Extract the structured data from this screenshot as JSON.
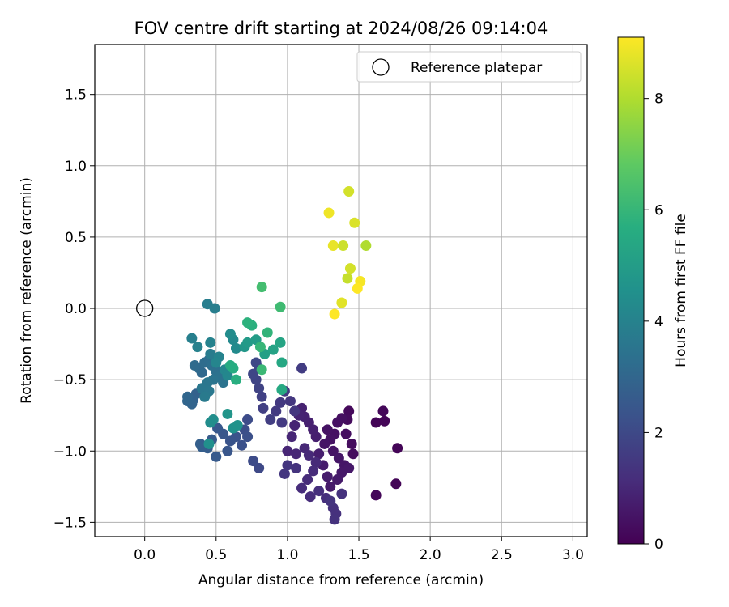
{
  "chart_data": {
    "type": "scatter",
    "title": "FOV centre drift starting at 2024/08/26 09:14:04",
    "xlabel": "Angular distance from reference (arcmin)",
    "ylabel": "Rotation from reference (arcmin)",
    "xlim": [
      -0.35,
      3.1
    ],
    "ylim": [
      -1.6,
      1.85
    ],
    "x_ticks": [
      0.0,
      0.5,
      1.0,
      1.5,
      2.0,
      2.5,
      3.0
    ],
    "x_tick_labels": [
      "0.0",
      "0.5",
      "1.0",
      "1.5",
      "2.0",
      "2.5",
      "3.0"
    ],
    "y_ticks": [
      -1.5,
      -1.0,
      -0.5,
      0.0,
      0.5,
      1.0,
      1.5
    ],
    "y_tick_labels": [
      "−1.5",
      "−1.0",
      "−0.5",
      "0.0",
      "0.5",
      "1.0",
      "1.5"
    ],
    "grid": true,
    "legend": {
      "placement": "top-right",
      "entries": [
        {
          "label": "Reference platepar",
          "marker": "open-circle"
        }
      ]
    },
    "reference_point": {
      "x": 0.0,
      "y": 0.0
    },
    "colorbar": {
      "label": "Hours from first FF file",
      "min": 0,
      "max": 9.1,
      "ticks": [
        0,
        2,
        4,
        6,
        8
      ],
      "tick_labels": [
        "0",
        "2",
        "4",
        "6",
        "8"
      ],
      "colormap": "viridis"
    },
    "points": [
      {
        "x": 1.62,
        "y": -0.8,
        "h": 0.1
      },
      {
        "x": 1.68,
        "y": -0.79,
        "h": 0.1
      },
      {
        "x": 1.67,
        "y": -0.72,
        "h": 0.15
      },
      {
        "x": 1.77,
        "y": -0.98,
        "h": 0.1
      },
      {
        "x": 1.76,
        "y": -1.23,
        "h": 0.1
      },
      {
        "x": 1.62,
        "y": -1.31,
        "h": 0.15
      },
      {
        "x": 1.43,
        "y": -0.72,
        "h": 0.2
      },
      {
        "x": 1.42,
        "y": -0.78,
        "h": 0.25
      },
      {
        "x": 1.46,
        "y": -1.02,
        "h": 0.3
      },
      {
        "x": 1.45,
        "y": -0.95,
        "h": 0.3
      },
      {
        "x": 1.41,
        "y": -0.88,
        "h": 0.35
      },
      {
        "x": 1.38,
        "y": -0.77,
        "h": 0.35
      },
      {
        "x": 1.35,
        "y": -0.8,
        "h": 0.4
      },
      {
        "x": 1.33,
        "y": -0.88,
        "h": 0.4
      },
      {
        "x": 1.3,
        "y": -0.92,
        "h": 0.45
      },
      {
        "x": 1.28,
        "y": -0.85,
        "h": 0.45
      },
      {
        "x": 1.26,
        "y": -0.95,
        "h": 0.5
      },
      {
        "x": 1.32,
        "y": -1.0,
        "h": 0.5
      },
      {
        "x": 1.36,
        "y": -1.05,
        "h": 0.55
      },
      {
        "x": 1.4,
        "y": -1.1,
        "h": 0.55
      },
      {
        "x": 1.43,
        "y": -1.12,
        "h": 0.6
      },
      {
        "x": 1.38,
        "y": -1.15,
        "h": 0.6
      },
      {
        "x": 1.35,
        "y": -1.2,
        "h": 0.65
      },
      {
        "x": 1.3,
        "y": -1.25,
        "h": 0.65
      },
      {
        "x": 1.28,
        "y": -1.18,
        "h": 0.7
      },
      {
        "x": 1.25,
        "y": -1.1,
        "h": 0.7
      },
      {
        "x": 1.22,
        "y": -1.02,
        "h": 0.75
      },
      {
        "x": 1.2,
        "y": -0.9,
        "h": 0.75
      },
      {
        "x": 1.18,
        "y": -0.85,
        "h": 0.8
      },
      {
        "x": 1.15,
        "y": -0.8,
        "h": 0.8
      },
      {
        "x": 1.12,
        "y": -0.76,
        "h": 0.85
      },
      {
        "x": 1.1,
        "y": -0.7,
        "h": 0.85
      },
      {
        "x": 1.08,
        "y": -0.75,
        "h": 0.9
      },
      {
        "x": 1.05,
        "y": -0.82,
        "h": 0.9
      },
      {
        "x": 1.03,
        "y": -0.9,
        "h": 0.95
      },
      {
        "x": 1.0,
        "y": -1.0,
        "h": 0.95
      },
      {
        "x": 1.06,
        "y": -1.02,
        "h": 1.0
      },
      {
        "x": 1.12,
        "y": -0.98,
        "h": 1.0
      },
      {
        "x": 1.15,
        "y": -1.03,
        "h": 1.05
      },
      {
        "x": 1.2,
        "y": -1.08,
        "h": 1.05
      },
      {
        "x": 1.18,
        "y": -1.14,
        "h": 1.1
      },
      {
        "x": 1.14,
        "y": -1.2,
        "h": 1.1
      },
      {
        "x": 1.1,
        "y": -1.26,
        "h": 1.15
      },
      {
        "x": 1.16,
        "y": -1.32,
        "h": 1.15
      },
      {
        "x": 1.22,
        "y": -1.28,
        "h": 1.2
      },
      {
        "x": 1.27,
        "y": -1.33,
        "h": 1.2
      },
      {
        "x": 1.32,
        "y": -1.4,
        "h": 1.25
      },
      {
        "x": 1.34,
        "y": -1.44,
        "h": 1.25
      },
      {
        "x": 1.33,
        "y": -1.48,
        "h": 1.3
      },
      {
        "x": 1.38,
        "y": -1.3,
        "h": 1.3
      },
      {
        "x": 1.3,
        "y": -1.35,
        "h": 1.35
      },
      {
        "x": 1.06,
        "y": -1.12,
        "h": 1.35
      },
      {
        "x": 1.0,
        "y": -1.1,
        "h": 1.4
      },
      {
        "x": 0.98,
        "y": -1.16,
        "h": 1.4
      },
      {
        "x": 1.05,
        "y": -0.72,
        "h": 1.45
      },
      {
        "x": 1.02,
        "y": -0.65,
        "h": 1.45
      },
      {
        "x": 0.98,
        "y": -0.58,
        "h": 1.5
      },
      {
        "x": 0.95,
        "y": -0.66,
        "h": 1.5
      },
      {
        "x": 0.92,
        "y": -0.72,
        "h": 1.55
      },
      {
        "x": 0.96,
        "y": -0.8,
        "h": 1.55
      },
      {
        "x": 1.1,
        "y": -0.42,
        "h": 1.6
      },
      {
        "x": 0.88,
        "y": -0.78,
        "h": 1.65
      },
      {
        "x": 0.83,
        "y": -0.7,
        "h": 1.7
      },
      {
        "x": 0.82,
        "y": -0.62,
        "h": 1.75
      },
      {
        "x": 0.8,
        "y": -0.56,
        "h": 1.8
      },
      {
        "x": 0.78,
        "y": -0.5,
        "h": 1.85
      },
      {
        "x": 0.76,
        "y": -0.46,
        "h": 1.9
      },
      {
        "x": 0.8,
        "y": -0.42,
        "h": 1.95
      },
      {
        "x": 0.78,
        "y": -0.38,
        "h": 2.0
      },
      {
        "x": 0.8,
        "y": -1.12,
        "h": 2.0
      },
      {
        "x": 0.76,
        "y": -1.07,
        "h": 2.05
      },
      {
        "x": 0.72,
        "y": -0.78,
        "h": 2.1
      },
      {
        "x": 0.7,
        "y": -0.85,
        "h": 2.15
      },
      {
        "x": 0.72,
        "y": -0.9,
        "h": 2.2
      },
      {
        "x": 0.68,
        "y": -0.96,
        "h": 2.25
      },
      {
        "x": 0.64,
        "y": -0.9,
        "h": 2.3
      },
      {
        "x": 0.6,
        "y": -0.93,
        "h": 2.35
      },
      {
        "x": 0.58,
        "y": -1.0,
        "h": 2.4
      },
      {
        "x": 0.55,
        "y": -0.88,
        "h": 2.45
      },
      {
        "x": 0.51,
        "y": -0.84,
        "h": 2.5
      },
      {
        "x": 0.5,
        "y": -1.04,
        "h": 2.55
      },
      {
        "x": 0.47,
        "y": -0.92,
        "h": 2.6
      },
      {
        "x": 0.44,
        "y": -0.98,
        "h": 2.65
      },
      {
        "x": 0.4,
        "y": -0.97,
        "h": 2.7
      },
      {
        "x": 0.39,
        "y": -0.95,
        "h": 2.75
      },
      {
        "x": 0.36,
        "y": -0.6,
        "h": 2.8
      },
      {
        "x": 0.34,
        "y": -0.64,
        "h": 2.85
      },
      {
        "x": 0.33,
        "y": -0.67,
        "h": 2.9
      },
      {
        "x": 0.3,
        "y": -0.65,
        "h": 2.95
      },
      {
        "x": 0.3,
        "y": -0.62,
        "h": 3.0
      },
      {
        "x": 0.4,
        "y": -0.45,
        "h": 3.05
      },
      {
        "x": 0.38,
        "y": -0.42,
        "h": 3.1
      },
      {
        "x": 0.35,
        "y": -0.4,
        "h": 3.15
      },
      {
        "x": 0.42,
        "y": -0.38,
        "h": 3.2
      },
      {
        "x": 0.45,
        "y": -0.36,
        "h": 3.25
      },
      {
        "x": 0.47,
        "y": -0.4,
        "h": 3.3
      },
      {
        "x": 0.5,
        "y": -0.44,
        "h": 3.35
      },
      {
        "x": 0.52,
        "y": -0.48,
        "h": 3.4
      },
      {
        "x": 0.55,
        "y": -0.52,
        "h": 3.45
      },
      {
        "x": 0.48,
        "y": -0.5,
        "h": 3.5
      },
      {
        "x": 0.44,
        "y": -0.52,
        "h": 3.55
      },
      {
        "x": 0.4,
        "y": -0.56,
        "h": 3.6
      },
      {
        "x": 0.45,
        "y": -0.58,
        "h": 3.65
      },
      {
        "x": 0.42,
        "y": -0.62,
        "h": 3.7
      },
      {
        "x": 0.46,
        "y": -0.32,
        "h": 3.75
      },
      {
        "x": 0.44,
        "y": 0.03,
        "h": 3.8
      },
      {
        "x": 0.49,
        "y": 0.0,
        "h": 3.85
      },
      {
        "x": 0.33,
        "y": -0.21,
        "h": 3.9
      },
      {
        "x": 0.37,
        "y": -0.27,
        "h": 3.95
      },
      {
        "x": 0.46,
        "y": -0.24,
        "h": 4.0
      },
      {
        "x": 0.52,
        "y": -0.34,
        "h": 4.05
      },
      {
        "x": 0.5,
        "y": -0.38,
        "h": 4.1
      },
      {
        "x": 0.56,
        "y": -0.43,
        "h": 4.15
      },
      {
        "x": 0.58,
        "y": -0.47,
        "h": 4.2
      },
      {
        "x": 0.62,
        "y": -0.22,
        "h": 4.25
      },
      {
        "x": 0.64,
        "y": -0.28,
        "h": 4.3
      },
      {
        "x": 0.6,
        "y": -0.18,
        "h": 4.35
      },
      {
        "x": 0.46,
        "y": -0.8,
        "h": 4.4
      },
      {
        "x": 0.48,
        "y": -0.78,
        "h": 4.45
      },
      {
        "x": 0.45,
        "y": -0.95,
        "h": 4.5
      },
      {
        "x": 0.62,
        "y": -0.84,
        "h": 4.55
      },
      {
        "x": 0.65,
        "y": -0.82,
        "h": 4.6
      },
      {
        "x": 0.58,
        "y": -0.74,
        "h": 4.7
      },
      {
        "x": 0.7,
        "y": -0.27,
        "h": 4.8
      },
      {
        "x": 0.72,
        "y": -0.24,
        "h": 4.9
      },
      {
        "x": 0.78,
        "y": -0.22,
        "h": 5.0
      },
      {
        "x": 0.84,
        "y": -0.32,
        "h": 5.1
      },
      {
        "x": 0.9,
        "y": -0.29,
        "h": 5.2
      },
      {
        "x": 0.95,
        "y": -0.24,
        "h": 5.3
      },
      {
        "x": 0.96,
        "y": -0.38,
        "h": 5.4
      },
      {
        "x": 0.96,
        "y": -0.57,
        "h": 5.5
      },
      {
        "x": 0.6,
        "y": -0.4,
        "h": 5.55
      },
      {
        "x": 0.62,
        "y": -0.42,
        "h": 5.6
      },
      {
        "x": 0.64,
        "y": -0.5,
        "h": 5.7
      },
      {
        "x": 0.75,
        "y": -0.12,
        "h": 5.75
      },
      {
        "x": 0.72,
        "y": -0.1,
        "h": 5.8
      },
      {
        "x": 0.86,
        "y": -0.17,
        "h": 5.9
      },
      {
        "x": 0.81,
        "y": -0.27,
        "h": 6.0
      },
      {
        "x": 0.82,
        "y": -0.43,
        "h": 6.1
      },
      {
        "x": 0.95,
        "y": 0.01,
        "h": 6.2
      },
      {
        "x": 0.82,
        "y": 0.15,
        "h": 6.3
      },
      {
        "x": 1.29,
        "y": 0.67,
        "h": 8.9
      },
      {
        "x": 1.43,
        "y": 0.82,
        "h": 8.5
      },
      {
        "x": 1.47,
        "y": 0.6,
        "h": 8.6
      },
      {
        "x": 1.32,
        "y": 0.44,
        "h": 8.8
      },
      {
        "x": 1.39,
        "y": 0.44,
        "h": 8.4
      },
      {
        "x": 1.55,
        "y": 0.44,
        "h": 8.0
      },
      {
        "x": 1.44,
        "y": 0.28,
        "h": 8.5
      },
      {
        "x": 1.42,
        "y": 0.21,
        "h": 8.3
      },
      {
        "x": 1.51,
        "y": 0.19,
        "h": 9.0
      },
      {
        "x": 1.49,
        "y": 0.14,
        "h": 9.1
      },
      {
        "x": 1.38,
        "y": 0.04,
        "h": 8.7
      },
      {
        "x": 1.33,
        "y": -0.04,
        "h": 9.1
      }
    ]
  }
}
